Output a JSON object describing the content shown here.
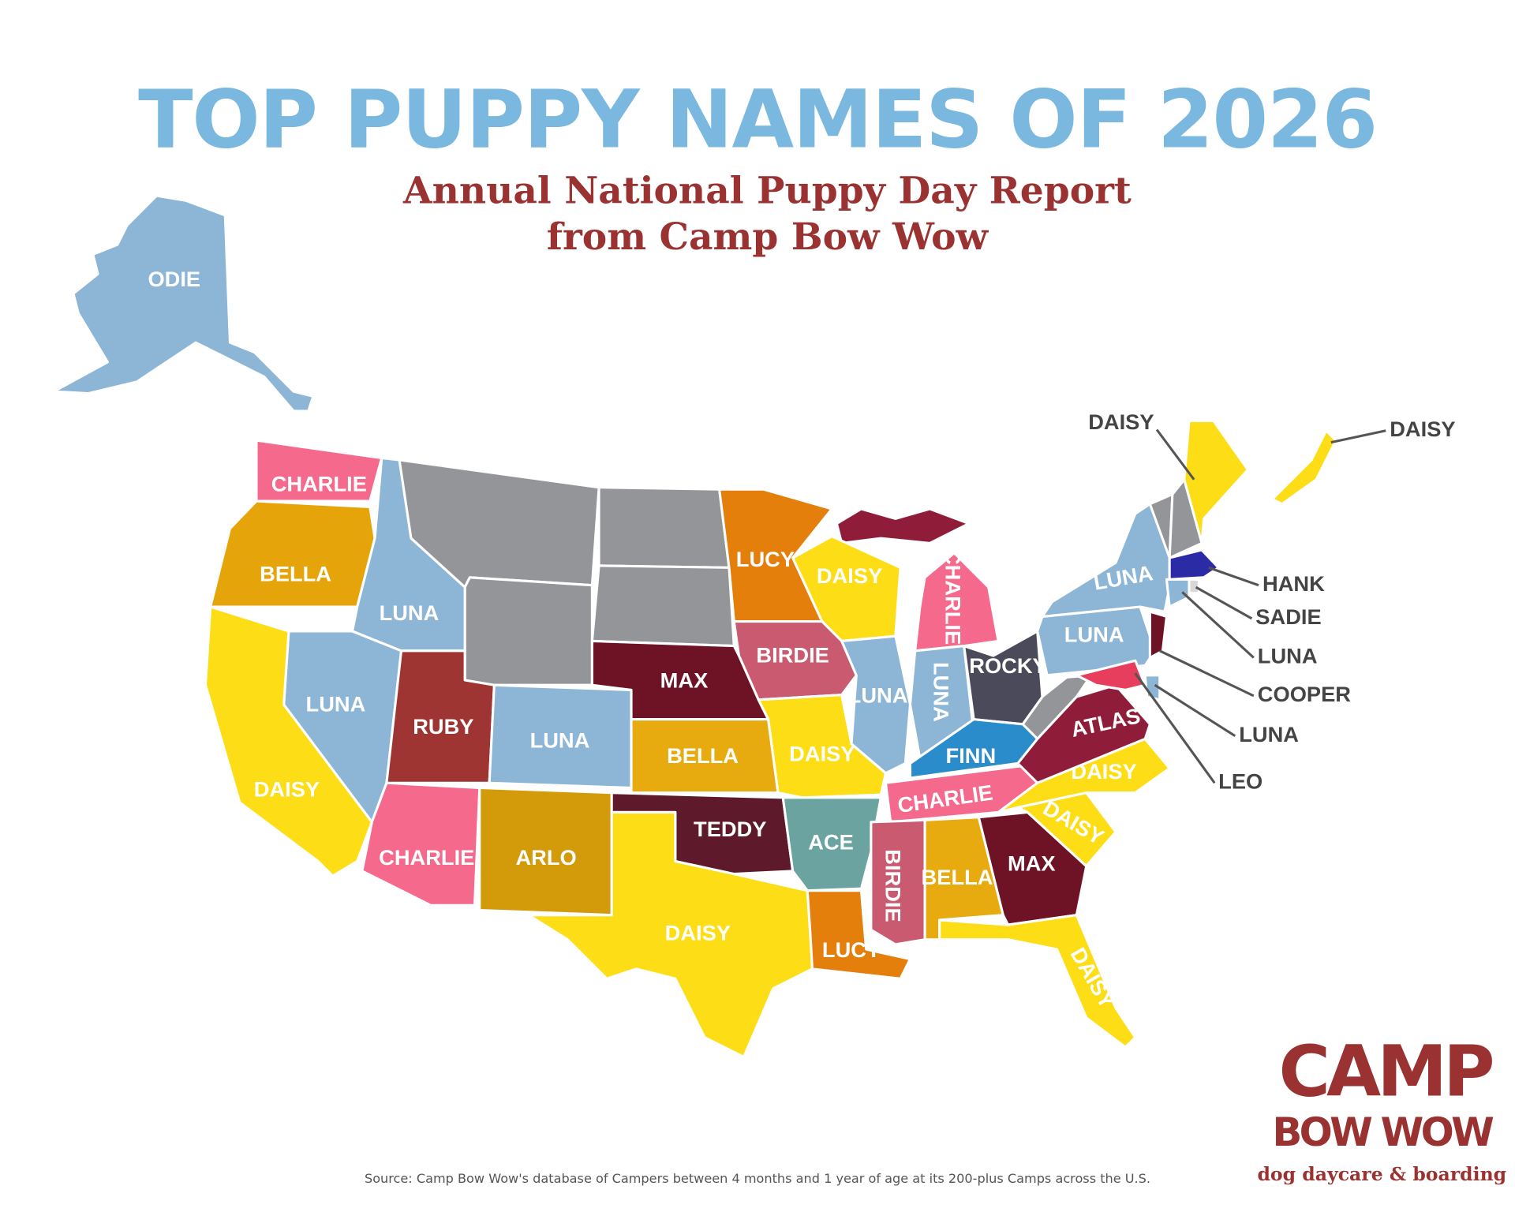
{
  "header": {
    "title": "TOP PUPPY NAMES OF 2026",
    "subtitle": [
      "Annual National Puppy Day Report",
      "from Camp Bow Wow"
    ]
  },
  "states": [
    {
      "label": "ODIE",
      "color": "#8db5d6"
    },
    {
      "label": "CHARLIE",
      "color": "#f5698d"
    },
    {
      "label": "BELLA",
      "color": "#e5a50a"
    },
    {
      "label": "LUNA",
      "color": "#8db5d6"
    },
    {
      "label": "LUCY",
      "color": "#e57f0c"
    },
    {
      "label": "DAISY",
      "color": "#fddd16"
    },
    {
      "label": "CHARLIE",
      "color": "#f5698d"
    },
    {
      "label": "BIRDIE",
      "color": "#c95a6f"
    },
    {
      "label": "MAX",
      "color": "#6d1325"
    },
    {
      "label": "LUNA",
      "color": "#8db5d6"
    },
    {
      "label": "DAISY",
      "color": "#fddd16"
    },
    {
      "label": "RUBY",
      "color": "#9e3532"
    },
    {
      "label": "LUNA",
      "color": "#8db5d6"
    },
    {
      "label": "BELLA",
      "color": "#e8ab0f"
    },
    {
      "label": "DAISY",
      "color": "#fddd16"
    },
    {
      "label": "CHARLIE",
      "color": "#f5698d"
    },
    {
      "label": "ARLO",
      "color": "#d39a0a"
    },
    {
      "label": "TEDDY",
      "color": "#5e1a2a"
    },
    {
      "label": "DAISY",
      "color": "#fddd16"
    },
    {
      "label": "ACE",
      "color": "#6aa39f"
    },
    {
      "label": "LUCY",
      "color": "#e57f0c"
    },
    {
      "label": "LUNA",
      "color": "#8db5d6"
    },
    {
      "label": "LUNA",
      "color": "#8db5d6"
    },
    {
      "label": "ROCKY",
      "color": "#4a4a5a"
    },
    {
      "label": "FINN",
      "color": "#2b8ccc"
    },
    {
      "label": "CHARLIE",
      "color": "#f5698d"
    },
    {
      "label": "BIRDIE",
      "color": "#c95a6f"
    },
    {
      "label": "BELLA",
      "color": "#e8ab0f"
    },
    {
      "label": "MAX",
      "color": "#6d1325"
    },
    {
      "label": "DAISY",
      "color": "#fddd16"
    },
    {
      "label": "DAISY",
      "color": "#fddd16"
    },
    {
      "label": "DAISY",
      "color": "#fddd16"
    },
    {
      "label": "ATLAS",
      "color": "#8f1d3a"
    },
    {
      "label": "LUNA",
      "color": "#8db5d6"
    },
    {
      "label": "LUNA",
      "color": "#8db5d6"
    }
  ],
  "callouts": [
    {
      "label": "DAISY",
      "color": "#fddd16"
    },
    {
      "label": "DAISY",
      "color": "#fddd16"
    },
    {
      "label": "HANK",
      "color": "#2b2ba6"
    },
    {
      "label": "SADIE",
      "color": "#d8d8d8"
    },
    {
      "label": "LUNA",
      "color": "#8db5d6"
    },
    {
      "label": "COOPER",
      "color": "#6d1325"
    },
    {
      "label": "LUNA",
      "color": "#8db5d6"
    },
    {
      "label": "LEO",
      "color": "#e63e5c"
    }
  ],
  "source": "Source: Camp Bow Wow's database of Campers between 4 months and 1 year of age at its 200-plus Camps across the U.S.",
  "logo": {
    "top": "CAMP",
    "middle": "BOW WOW",
    "bottom": "dog daycare & boarding"
  }
}
